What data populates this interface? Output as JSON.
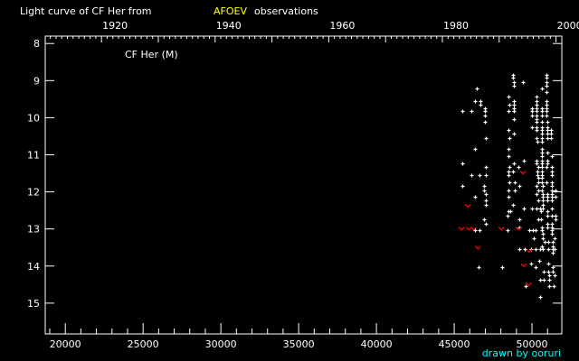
{
  "chart_data": {
    "type": "scatter",
    "title_prefix": "Light curve of CF Her from",
    "title_source": "AFOEV",
    "title_suffix": "observations",
    "series_label": "CF Her (M)",
    "credit": "drawn by ooruri",
    "colors": {
      "background": "#000000",
      "axes": "#ffffff",
      "observation": "#ffffff",
      "upper_limit": "#ff0000",
      "source": "#ffff00",
      "credit": "#00ffff"
    },
    "x_axis": {
      "label": "",
      "range": [
        18709,
        51917
      ],
      "ticks": [
        20000,
        25000,
        30000,
        35000,
        40000,
        45000,
        50000
      ],
      "tick_labels": [
        "20000",
        "25000",
        "30000",
        "35000",
        "40000",
        "45000",
        "50000"
      ]
    },
    "top_axis": {
      "ticks": [
        1920,
        1940,
        1960,
        1980,
        2000
      ],
      "tick_labels": [
        "1920",
        "1940",
        "1960",
        "1980",
        "2000"
      ]
    },
    "y_axis": {
      "label": "",
      "range": [
        7.8,
        15.83
      ],
      "inverted": true,
      "ticks": [
        8,
        9,
        10,
        11,
        12,
        13,
        14,
        15
      ],
      "tick_labels": [
        "8",
        "9",
        "10",
        "11",
        "12",
        "13",
        "14",
        "15"
      ]
    },
    "observations": [
      [
        46423,
        9.22
      ],
      [
        46346,
        9.54
      ],
      [
        46695,
        9.54
      ],
      [
        46695,
        9.64
      ],
      [
        45493,
        9.83
      ],
      [
        46075,
        9.83
      ],
      [
        46985,
        9.74
      ],
      [
        46985,
        9.83
      ],
      [
        46985,
        9.93
      ],
      [
        46985,
        10.12
      ],
      [
        47044,
        10.54
      ],
      [
        46346,
        10.83
      ],
      [
        45493,
        11.24
      ],
      [
        47044,
        11.34
      ],
      [
        46075,
        11.54
      ],
      [
        46637,
        11.54
      ],
      [
        47044,
        11.54
      ],
      [
        48788,
        8.84
      ],
      [
        48788,
        8.93
      ],
      [
        48846,
        9.03
      ],
      [
        48846,
        9.13
      ],
      [
        49427,
        9.03
      ],
      [
        48497,
        9.42
      ],
      [
        48846,
        9.54
      ],
      [
        48555,
        9.64
      ],
      [
        48846,
        9.64
      ],
      [
        48846,
        9.74
      ],
      [
        48497,
        9.83
      ],
      [
        48846,
        9.83
      ],
      [
        48846,
        10.03
      ],
      [
        48497,
        10.34
      ],
      [
        48846,
        10.44
      ],
      [
        48555,
        10.54
      ],
      [
        48497,
        10.83
      ],
      [
        48497,
        11.03
      ],
      [
        49485,
        11.15
      ],
      [
        48846,
        11.24
      ],
      [
        48555,
        11.34
      ],
      [
        49137,
        11.34
      ],
      [
        48497,
        11.44
      ],
      [
        48788,
        11.44
      ],
      [
        48497,
        11.54
      ],
      [
        48555,
        11.73
      ],
      [
        48904,
        11.73
      ],
      [
        50939,
        8.84
      ],
      [
        50939,
        8.93
      ],
      [
        50939,
        9.03
      ],
      [
        50939,
        9.13
      ],
      [
        50648,
        9.22
      ],
      [
        50939,
        9.32
      ],
      [
        50299,
        9.42
      ],
      [
        50299,
        9.54
      ],
      [
        50939,
        9.54
      ],
      [
        50299,
        9.64
      ],
      [
        50939,
        9.64
      ],
      [
        50009,
        9.74
      ],
      [
        50299,
        9.74
      ],
      [
        50648,
        9.74
      ],
      [
        50939,
        9.74
      ],
      [
        50009,
        9.83
      ],
      [
        50299,
        9.83
      ],
      [
        50648,
        9.83
      ],
      [
        50939,
        9.83
      ],
      [
        50009,
        9.93
      ],
      [
        50299,
        9.93
      ],
      [
        50648,
        9.93
      ],
      [
        50939,
        9.93
      ],
      [
        50299,
        10.03
      ],
      [
        50299,
        10.12
      ],
      [
        50648,
        10.12
      ],
      [
        50997,
        10.12
      ],
      [
        50009,
        10.25
      ],
      [
        50299,
        10.25
      ],
      [
        50648,
        10.25
      ],
      [
        50997,
        10.25
      ],
      [
        50299,
        10.34
      ],
      [
        50648,
        10.34
      ],
      [
        50997,
        10.34
      ],
      [
        51230,
        10.34
      ],
      [
        50648,
        10.44
      ],
      [
        50997,
        10.44
      ],
      [
        51230,
        10.44
      ],
      [
        50299,
        10.54
      ],
      [
        50648,
        10.54
      ],
      [
        50997,
        10.54
      ],
      [
        51230,
        10.54
      ],
      [
        50357,
        10.64
      ],
      [
        50648,
        10.64
      ],
      [
        50648,
        10.83
      ],
      [
        50648,
        10.93
      ],
      [
        50997,
        10.93
      ],
      [
        50648,
        11.03
      ],
      [
        51288,
        11.03
      ],
      [
        50299,
        11.15
      ],
      [
        50648,
        11.15
      ],
      [
        50997,
        11.15
      ],
      [
        50299,
        11.24
      ],
      [
        50648,
        11.24
      ],
      [
        50997,
        11.24
      ],
      [
        50415,
        11.34
      ],
      [
        50648,
        11.34
      ],
      [
        50939,
        11.34
      ],
      [
        51288,
        11.34
      ],
      [
        50357,
        11.44
      ],
      [
        50648,
        11.44
      ],
      [
        51288,
        11.44
      ],
      [
        50357,
        11.54
      ],
      [
        50648,
        11.54
      ],
      [
        51288,
        11.54
      ],
      [
        50415,
        11.63
      ],
      [
        50648,
        11.63
      ],
      [
        50415,
        11.73
      ],
      [
        50648,
        11.73
      ],
      [
        50939,
        11.73
      ],
      [
        51288,
        11.73
      ],
      [
        45532,
        11.85
      ],
      [
        46927,
        11.85
      ],
      [
        46927,
        11.95
      ],
      [
        47044,
        12.05
      ],
      [
        46346,
        12.14
      ],
      [
        47044,
        12.24
      ],
      [
        47044,
        12.34
      ],
      [
        46927,
        12.75
      ],
      [
        47044,
        12.85
      ],
      [
        46346,
        13.04
      ],
      [
        46637,
        13.04
      ],
      [
        46578,
        14.04
      ],
      [
        48497,
        11.95
      ],
      [
        48904,
        11.95
      ],
      [
        49195,
        11.85
      ],
      [
        48497,
        12.14
      ],
      [
        48788,
        12.34
      ],
      [
        49485,
        12.44
      ],
      [
        48497,
        12.53
      ],
      [
        48613,
        12.53
      ],
      [
        48439,
        12.65
      ],
      [
        49195,
        12.75
      ],
      [
        49195,
        12.95
      ],
      [
        48439,
        13.04
      ],
      [
        49834,
        13.04
      ],
      [
        50067,
        13.04
      ],
      [
        50241,
        13.04
      ],
      [
        50125,
        13.24
      ],
      [
        49195,
        13.55
      ],
      [
        49544,
        13.55
      ],
      [
        49951,
        13.55
      ],
      [
        49951,
        13.94
      ],
      [
        50241,
        14.04
      ],
      [
        48090,
        14.04
      ],
      [
        49602,
        14.55
      ],
      [
        50299,
        11.85
      ],
      [
        50706,
        11.85
      ],
      [
        51288,
        11.85
      ],
      [
        50415,
        11.95
      ],
      [
        50648,
        11.95
      ],
      [
        51288,
        11.95
      ],
      [
        51520,
        11.95
      ],
      [
        50299,
        12.05
      ],
      [
        50706,
        12.05
      ],
      [
        50997,
        12.05
      ],
      [
        51288,
        12.05
      ],
      [
        50706,
        12.14
      ],
      [
        50997,
        12.14
      ],
      [
        51288,
        12.14
      ],
      [
        51520,
        12.14
      ],
      [
        50415,
        12.24
      ],
      [
        50706,
        12.24
      ],
      [
        50997,
        12.24
      ],
      [
        51288,
        12.24
      ],
      [
        50706,
        12.34
      ],
      [
        50009,
        12.44
      ],
      [
        50299,
        12.44
      ],
      [
        50532,
        12.44
      ],
      [
        50706,
        12.44
      ],
      [
        51288,
        12.44
      ],
      [
        50590,
        12.53
      ],
      [
        50997,
        12.53
      ],
      [
        50997,
        12.65
      ],
      [
        51288,
        12.65
      ],
      [
        51520,
        12.65
      ],
      [
        51520,
        12.75
      ],
      [
        50415,
        12.75
      ],
      [
        50590,
        12.75
      ],
      [
        50997,
        12.85
      ],
      [
        51288,
        12.85
      ],
      [
        50648,
        12.95
      ],
      [
        50997,
        12.95
      ],
      [
        51288,
        12.95
      ],
      [
        50648,
        13.04
      ],
      [
        51288,
        13.04
      ],
      [
        50706,
        13.14
      ],
      [
        51288,
        13.14
      ],
      [
        50706,
        13.24
      ],
      [
        51462,
        13.24
      ],
      [
        50823,
        13.34
      ],
      [
        51055,
        13.34
      ],
      [
        51346,
        13.34
      ],
      [
        50648,
        13.46
      ],
      [
        51346,
        13.46
      ],
      [
        50241,
        13.55
      ],
      [
        50532,
        13.55
      ],
      [
        50706,
        13.55
      ],
      [
        51055,
        13.55
      ],
      [
        51346,
        13.55
      ],
      [
        51462,
        13.55
      ],
      [
        51346,
        13.65
      ],
      [
        50474,
        13.85
      ],
      [
        51055,
        13.94
      ],
      [
        51346,
        14.04
      ],
      [
        50765,
        14.14
      ],
      [
        51055,
        14.14
      ],
      [
        51346,
        14.14
      ],
      [
        51113,
        14.26
      ],
      [
        51462,
        14.26
      ],
      [
        50532,
        14.36
      ],
      [
        50765,
        14.36
      ],
      [
        51113,
        14.36
      ],
      [
        51113,
        14.55
      ],
      [
        51404,
        14.55
      ],
      [
        50532,
        14.84
      ]
    ],
    "upper_limits": [
      [
        49427,
        11.49
      ],
      [
        45881,
        12.39
      ],
      [
        45474,
        13.0
      ],
      [
        45939,
        13.0
      ],
      [
        46230,
        13.0
      ],
      [
        48032,
        13.0
      ],
      [
        49137,
        13.0
      ],
      [
        46520,
        13.51
      ],
      [
        49834,
        13.6
      ],
      [
        49485,
        13.99
      ],
      [
        49776,
        14.5
      ]
    ]
  }
}
